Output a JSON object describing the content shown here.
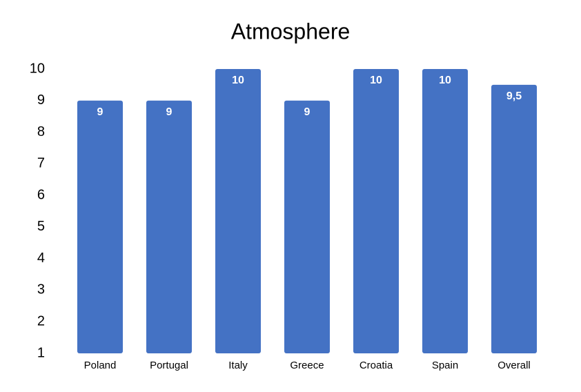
{
  "chart_data": {
    "type": "bar",
    "title": "Atmosphere",
    "categories": [
      "Poland",
      "Portugal",
      "Italy",
      "Greece",
      "Croatia",
      "Spain",
      "Overall"
    ],
    "values": [
      9,
      9,
      10,
      9,
      10,
      10,
      9.5
    ],
    "value_labels": [
      "9",
      "9",
      "10",
      "9",
      "10",
      "10",
      "9,5"
    ],
    "color": "#4472c4",
    "ylim": [
      1,
      10
    ],
    "yticks": [
      1,
      2,
      3,
      4,
      5,
      6,
      7,
      8,
      9,
      10
    ]
  }
}
